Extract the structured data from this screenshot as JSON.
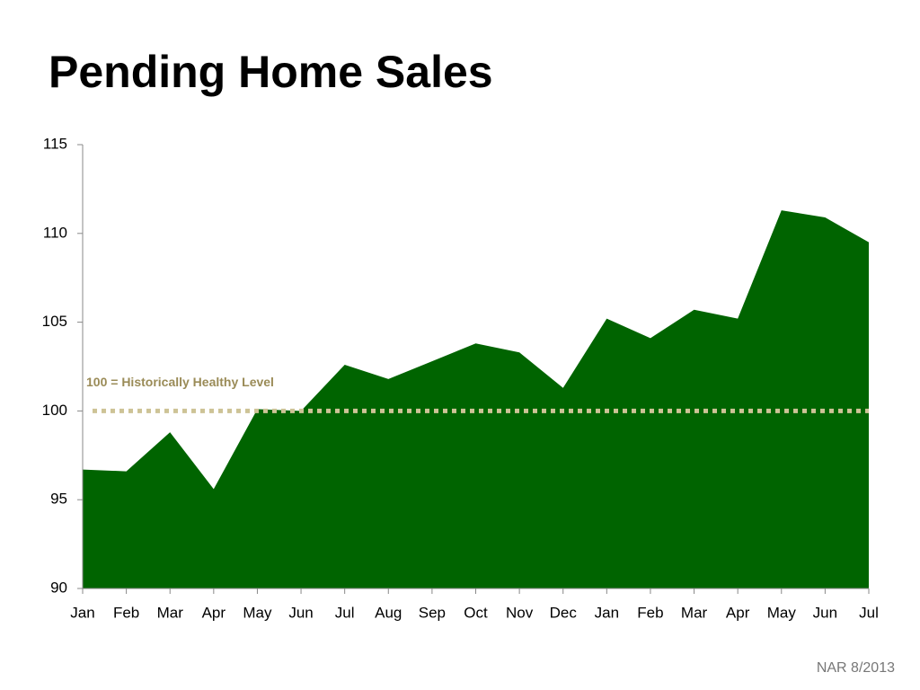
{
  "chart_data": {
    "type": "area",
    "title": "Pending Home Sales",
    "categories": [
      "Jan",
      "Feb",
      "Mar",
      "Apr",
      "May",
      "Jun",
      "Jul",
      "Aug",
      "Sep",
      "Oct",
      "Nov",
      "Dec",
      "Jan",
      "Feb",
      "Mar",
      "Apr",
      "May",
      "Jun",
      "Jul"
    ],
    "values": [
      96.7,
      96.6,
      98.8,
      95.6,
      100.1,
      100.0,
      102.6,
      101.8,
      102.8,
      103.8,
      103.3,
      101.3,
      105.2,
      104.1,
      105.7,
      105.2,
      111.3,
      110.9,
      109.5
    ],
    "color": "#006400",
    "ylim": [
      90,
      115
    ],
    "yticks": [
      90,
      95,
      100,
      105,
      110,
      115
    ],
    "reference_line": {
      "value": 100,
      "label": "100 = Historically Healthy Level",
      "color": "#cdc396"
    },
    "source": "NAR 8/2013"
  }
}
